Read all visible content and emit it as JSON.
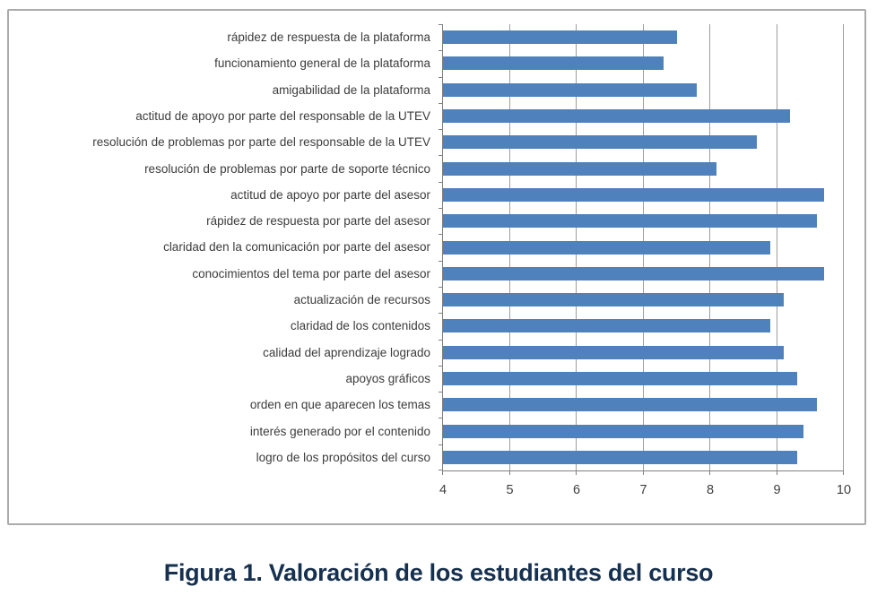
{
  "caption": "Figura 1. Valoración de los estudiantes del curso",
  "chart_data": {
    "type": "bar",
    "orientation": "horizontal",
    "title": "",
    "xlabel": "",
    "ylabel": "",
    "categories": [
      "rápidez de respuesta de la plataforma",
      "funcionamiento general de la  plataforma",
      "amigabilidad de la plataforma",
      "actitud de apoyo por parte del responsable de la UTEV",
      "resolución de problemas por parte del responsable de la UTEV",
      "resolución de problemas por parte de soporte técnico",
      "actitud de apoyo por parte del asesor",
      "rápidez de respuesta por parte del asesor",
      "claridad den la comunicación  por parte del asesor",
      "conocimientos del tema por parte del asesor",
      "actualización de recursos",
      "claridad de los contenidos",
      "calidad del aprendizaje logrado",
      "apoyos gráficos",
      "orden en que aparecen los temas",
      "interés generado por el contenido",
      "logro de los propósitos  del curso"
    ],
    "values": [
      7.5,
      7.3,
      7.8,
      9.2,
      8.7,
      8.1,
      9.7,
      9.6,
      8.9,
      9.7,
      9.1,
      8.9,
      9.1,
      9.3,
      9.6,
      9.4,
      9.3
    ],
    "xlim": [
      4,
      10
    ],
    "xticks": [
      4,
      5,
      6,
      7,
      8,
      9,
      10
    ],
    "grid": "vertical-gridlines-on",
    "legend": "none",
    "colors": {
      "bar": "#4F81BD",
      "gridline": "#9d9d9d",
      "axis": "#808080",
      "category_label": "#3c3c3c",
      "tick_label": "#3f3f3f",
      "caption": "#16304f",
      "frame_border": "#ababab"
    }
  }
}
